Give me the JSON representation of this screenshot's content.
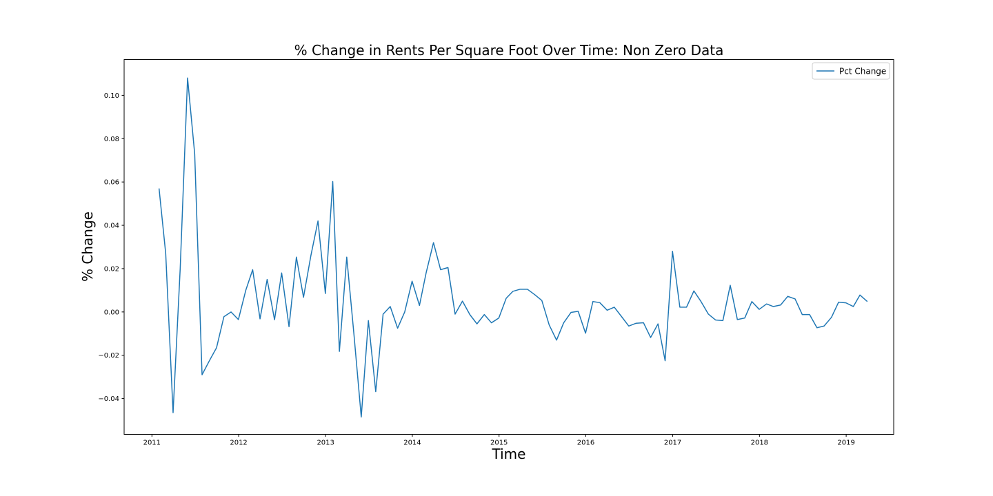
{
  "chart_data": {
    "type": "line",
    "title": "% Change in Rents Per Square Foot Over Time: Non Zero Data",
    "xlabel": "Time",
    "ylabel": "% Change",
    "xlim": [
      "2010-09-06",
      "2019-07-20"
    ],
    "ylim": [
      -0.0565,
      0.1165
    ],
    "x_ticks": [
      "2011",
      "2012",
      "2013",
      "2014",
      "2015",
      "2016",
      "2017",
      "2018",
      "2019"
    ],
    "y_ticks": [
      "0.10",
      "0.08",
      "0.06",
      "0.04",
      "0.02",
      "0.00",
      "−0.02",
      "−0.04"
    ],
    "y_tick_values": [
      0.1,
      0.08,
      0.06,
      0.04,
      0.02,
      0.0,
      -0.02,
      -0.04
    ],
    "grid": false,
    "legend": {
      "position": "top-right"
    },
    "color": "#1f77b4",
    "series": [
      {
        "name": "Pct Change",
        "x": [
          "2011-01-31",
          "2011-02-28",
          "2011-03-31",
          "2011-04-30",
          "2011-05-31",
          "2011-06-30",
          "2011-07-31",
          "2011-08-31",
          "2011-09-30",
          "2011-10-31",
          "2011-11-30",
          "2011-12-31",
          "2012-01-31",
          "2012-02-29",
          "2012-03-31",
          "2012-04-30",
          "2012-05-31",
          "2012-06-30",
          "2012-07-31",
          "2012-08-31",
          "2012-09-30",
          "2012-10-31",
          "2012-11-30",
          "2012-12-31",
          "2013-01-31",
          "2013-02-28",
          "2013-03-31",
          "2013-04-30",
          "2013-05-31",
          "2013-06-30",
          "2013-07-31",
          "2013-08-31",
          "2013-09-30",
          "2013-10-31",
          "2013-11-30",
          "2013-12-31",
          "2014-01-31",
          "2014-02-28",
          "2014-03-31",
          "2014-04-30",
          "2014-05-31",
          "2014-06-30",
          "2014-07-31",
          "2014-08-31",
          "2014-09-30",
          "2014-10-31",
          "2014-11-30",
          "2014-12-31",
          "2015-01-31",
          "2015-02-28",
          "2015-03-31",
          "2015-04-30",
          "2015-05-31",
          "2015-06-30",
          "2015-07-31",
          "2015-08-31",
          "2015-09-30",
          "2015-10-31",
          "2015-11-30",
          "2015-12-31",
          "2016-01-31",
          "2016-02-29",
          "2016-03-31",
          "2016-04-30",
          "2016-05-31",
          "2016-06-30",
          "2016-07-31",
          "2016-08-31",
          "2016-09-30",
          "2016-10-31",
          "2016-11-30",
          "2016-12-31",
          "2017-01-31",
          "2017-02-28",
          "2017-03-31",
          "2017-04-30",
          "2017-05-31",
          "2017-06-30",
          "2017-07-31",
          "2017-08-31",
          "2017-09-30",
          "2017-10-31",
          "2017-11-30",
          "2017-12-31",
          "2018-01-31",
          "2018-02-28",
          "2018-03-31",
          "2018-04-30",
          "2018-05-31",
          "2018-06-30",
          "2018-07-31",
          "2018-08-31",
          "2018-09-30",
          "2018-10-31",
          "2018-11-30",
          "2018-12-31",
          "2019-01-31",
          "2019-02-28",
          "2019-03-31"
        ],
        "values": [
          0.057,
          0.027,
          -0.0465,
          0.02,
          0.108,
          0.073,
          -0.029,
          -0.0225,
          -0.0165,
          -0.0022,
          0.0,
          -0.0035,
          0.01,
          0.0195,
          -0.0032,
          0.015,
          -0.0036,
          0.018,
          -0.0068,
          0.0253,
          0.0068,
          0.026,
          0.042,
          0.0085,
          0.0602,
          -0.0182,
          0.0253,
          -0.01,
          -0.0485,
          -0.004,
          -0.0368,
          -0.001,
          0.0025,
          -0.0075,
          0.0,
          0.0142,
          0.003,
          0.018,
          0.032,
          0.0195,
          0.0205,
          -0.001,
          0.005,
          -0.0012,
          -0.0055,
          -0.0012,
          -0.005,
          -0.0028,
          0.0063,
          0.0095,
          0.0105,
          0.0105,
          0.008,
          0.0053,
          -0.006,
          -0.013,
          -0.005,
          -0.0002,
          0.0003,
          -0.0098,
          0.0048,
          0.0043,
          0.0008,
          0.0022,
          -0.0022,
          -0.0065,
          -0.0052,
          -0.005,
          -0.0118,
          -0.0055,
          -0.0225,
          0.028,
          0.0022,
          0.0022,
          0.0097,
          0.0048,
          -0.001,
          -0.0037,
          -0.004,
          0.0123,
          -0.0035,
          -0.0028,
          0.0048,
          0.0012,
          0.0037,
          0.0025,
          0.0032,
          0.0072,
          0.006,
          -0.0012,
          -0.0012,
          -0.0073,
          -0.0065,
          -0.0025,
          0.0045,
          0.0042,
          0.0025,
          0.0078,
          0.0048
        ]
      }
    ]
  }
}
